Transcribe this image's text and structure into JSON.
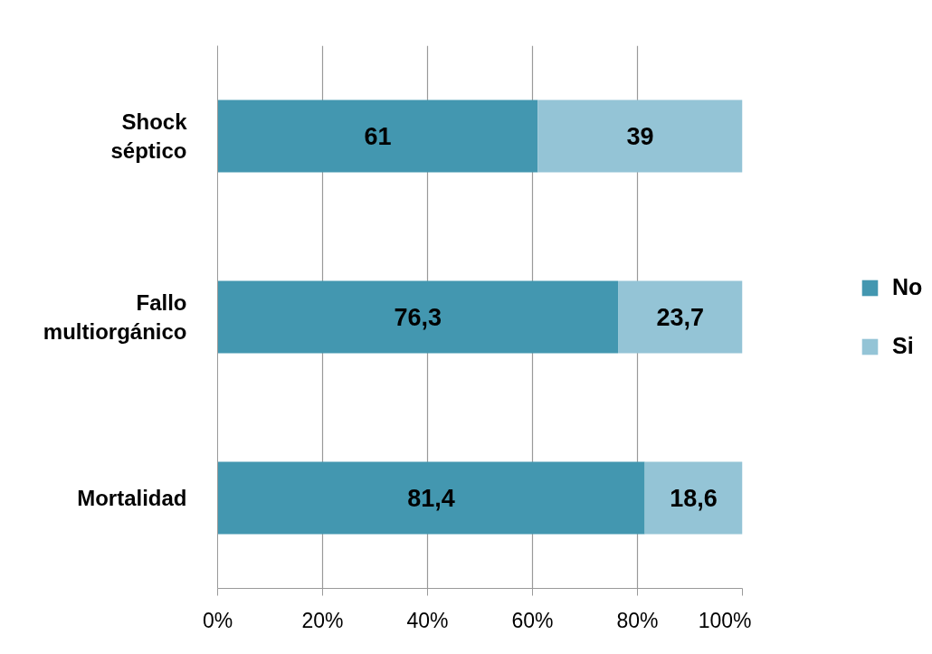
{
  "chart_data": {
    "type": "bar",
    "orientation": "horizontal",
    "stacked": true,
    "categories": [
      "Shock\nséptico",
      "Fallo\nmultiorgánico",
      "Mortalidad"
    ],
    "series": [
      {
        "name": "No",
        "color": "#4397b0",
        "values": [
          61,
          76.3,
          81.4
        ],
        "value_labels": [
          "61",
          "76,3",
          "81,4"
        ]
      },
      {
        "name": "Si",
        "color": "#94c4d6",
        "values": [
          39,
          23.7,
          18.6
        ],
        "value_labels": [
          "39",
          "23,7",
          "18,6"
        ]
      }
    ],
    "xlim": [
      0,
      100
    ],
    "xticks": [
      {
        "value": 0,
        "label": "0%"
      },
      {
        "value": 20,
        "label": "20%"
      },
      {
        "value": 40,
        "label": "40%"
      },
      {
        "value": 60,
        "label": "60%"
      },
      {
        "value": 80,
        "label": "80%"
      },
      {
        "value": 100,
        "label": "100%"
      }
    ],
    "grid": "x",
    "legend": "right"
  }
}
